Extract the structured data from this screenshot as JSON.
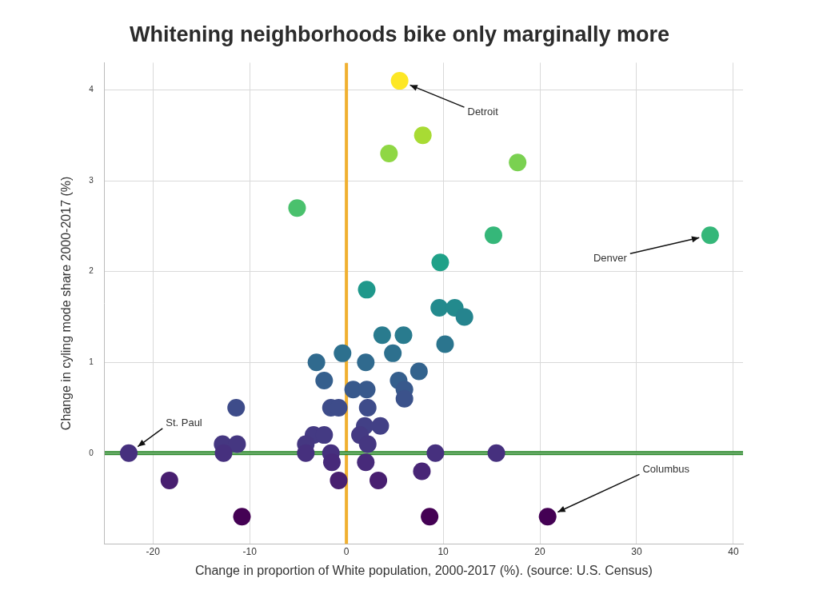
{
  "chart_data": {
    "type": "scatter",
    "title": "Whitening neighborhoods bike only marginally more",
    "x_label": "Change in proportion of White population, 2000-2017 (%). (source: U.S. Census)",
    "y_label": "Change in cyling mode share 2000-2017 (%)",
    "x": [
      5.5,
      7.9,
      4.4,
      17.7,
      -5.1,
      15.2,
      37.6,
      9.7,
      2.1,
      9.6,
      11.2,
      12.2,
      10.2,
      3.7,
      5.9,
      4.8,
      -0.4,
      -3.1,
      2.0,
      7.5,
      -2.3,
      5.4,
      0.7,
      2.1,
      6.0,
      6.0,
      -11.4,
      -1.6,
      -0.8,
      2.2,
      3.5,
      1.9,
      1.4,
      -3.4,
      -2.3,
      -12.8,
      -11.3,
      -4.2,
      2.2,
      -22.5,
      -12.7,
      -4.2,
      -1.6,
      9.2,
      15.5,
      -1.5,
      2.0,
      -18.3,
      -0.8,
      3.3,
      7.8,
      -10.8,
      8.6,
      20.8
    ],
    "values": [
      4.1,
      3.5,
      3.3,
      3.2,
      2.7,
      2.4,
      2.4,
      2.1,
      1.8,
      1.6,
      1.6,
      1.5,
      1.2,
      1.3,
      1.3,
      1.1,
      1.1,
      1.0,
      1.0,
      0.9,
      0.8,
      0.8,
      0.7,
      0.7,
      0.7,
      0.6,
      0.5,
      0.5,
      0.5,
      0.5,
      0.3,
      0.3,
      0.2,
      0.2,
      0.2,
      0.1,
      0.1,
      0.1,
      0.1,
      0,
      0,
      0,
      0,
      0,
      0,
      -0.1,
      -0.1,
      -0.3,
      -0.3,
      -0.3,
      -0.2,
      -0.7,
      -0.7,
      -0.7
    ],
    "colors": [
      "#fde725",
      "#a8db34",
      "#8fd744",
      "#7ad151",
      "#4ac16d",
      "#35b779",
      "#35b779",
      "#1fa188",
      "#1f988b",
      "#238a8d",
      "#238a8d",
      "#25848e",
      "#2b758e",
      "#297b8e",
      "#297b8e",
      "#2d708e",
      "#2d708e",
      "#306a8e",
      "#306a8e",
      "#33638d",
      "#355f8d",
      "#355f8d",
      "#38598c",
      "#38598c",
      "#38598c",
      "#3b528b",
      "#3e4c8a",
      "#3e4c8a",
      "#3e4c8a",
      "#3e4c8a",
      "#424086",
      "#424086",
      "#443a83",
      "#443a83",
      "#443a83",
      "#453781",
      "#453781",
      "#453781",
      "#453781",
      "#46307e",
      "#46307e",
      "#46307e",
      "#46307e",
      "#46307e",
      "#46307e",
      "#472a7a",
      "#472a7a",
      "#481f70",
      "#481f70",
      "#481f70",
      "#482576",
      "#440154",
      "#440154",
      "#440154"
    ],
    "xlim": [
      -25,
      41
    ],
    "xticks": [
      -20,
      -10,
      0,
      10,
      20,
      30,
      40
    ],
    "ylim": [
      -1,
      4.3
    ],
    "yticks": [
      0,
      1,
      2,
      3,
      4
    ],
    "grid": true,
    "reference_lines": [
      {
        "axis": "x",
        "value": 0,
        "color": "#f0b030"
      },
      {
        "axis": "y",
        "value": 0,
        "color": "#2e8b2e"
      }
    ],
    "annotations": [
      {
        "text": "Detroit",
        "x": 5.5,
        "y": 4.1
      },
      {
        "text": "Denver",
        "x": 37.6,
        "y": 2.4
      },
      {
        "text": "St. Paul",
        "x": -22.5,
        "y": 0
      },
      {
        "text": "Columbus",
        "x": 20.8,
        "y": -0.7
      }
    ]
  }
}
